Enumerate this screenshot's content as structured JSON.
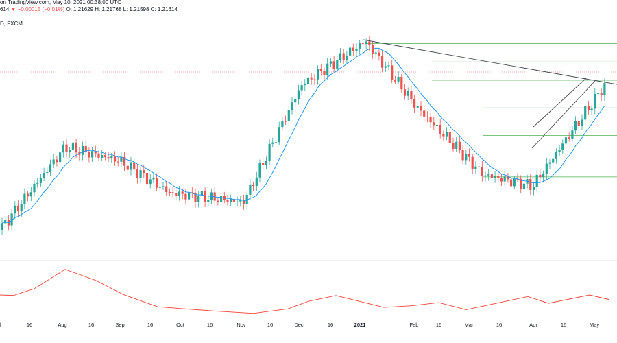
{
  "header": {
    "line1": "on TradingView.com, May 10, 2021 00:38:00 UTC",
    "line2_price": "614",
    "line2_change": "▼ −0.00015 (−0.01%)",
    "line2_ohlc": "O: 1.21629  H: 1.21768  L: 1.21598  C: 1.21614",
    "symbol": "D, FXCM"
  },
  "colors": {
    "up": "#26a69a",
    "down": "#ef5350",
    "ma": "#2196f3",
    "oscillator": "#f44336",
    "fib": "#4caf50",
    "trendline": "#434651"
  },
  "chart_data": {
    "type": "candlestick",
    "x_axis_labels": [
      "l",
      "16",
      "Aug",
      "16",
      "Sep",
      "16",
      "Oct",
      "16",
      "Nov",
      "16",
      "Dec",
      "16",
      "2021",
      "Feb",
      "16",
      "Mar",
      "16",
      "Apr",
      "16",
      "May"
    ],
    "current_price": {
      "close": 1.21614
    },
    "key_points": [
      {
        "label": "Jul",
        "value": 1.152
      },
      {
        "label": "Aug",
        "value": 1.188
      },
      {
        "label": "Sep",
        "value": 1.182
      },
      {
        "label": "Oct",
        "value": 1.168
      },
      {
        "label": "Nov",
        "value": 1.164
      },
      {
        "label": "Dec",
        "value": 1.215
      },
      {
        "label": "2021",
        "value": 1.234
      },
      {
        "label": "Feb",
        "value": 1.204
      },
      {
        "label": "Mar",
        "value": 1.176
      },
      {
        "label": "Apr",
        "value": 1.171
      },
      {
        "label": "May",
        "value": 1.216
      }
    ],
    "moving_average": true,
    "fib_levels": [
      1.233,
      1.225,
      1.217,
      1.205,
      1.193,
      1.175
    ],
    "oscillator_panel": true,
    "grid": false
  }
}
